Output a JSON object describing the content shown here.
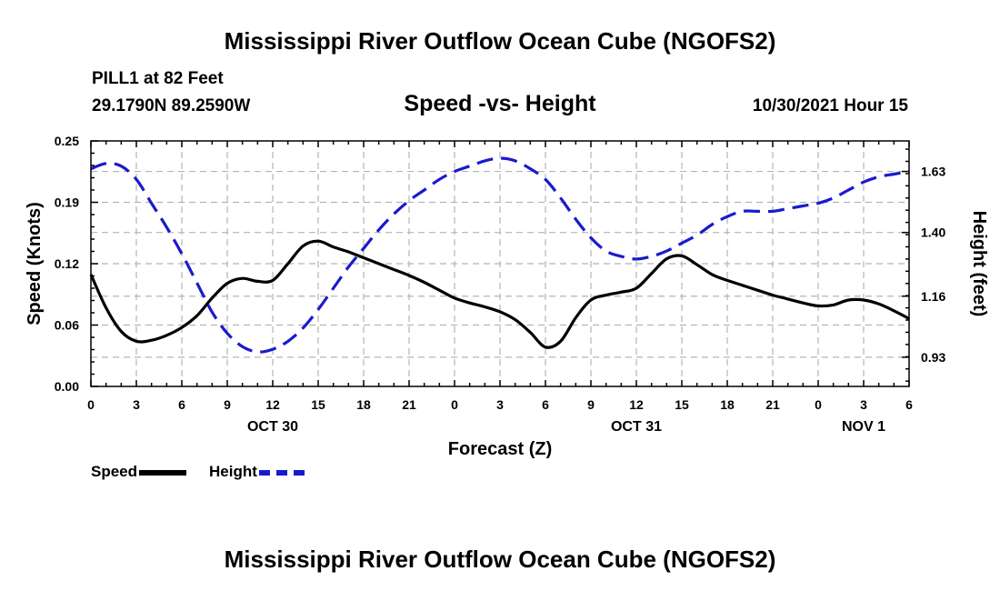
{
  "header": {
    "title": "Mississippi River Outflow Ocean Cube (NGOFS2)",
    "station": "PILL1 at 82 Feet",
    "coords": "29.1790N  89.2590W",
    "subtitle": "Speed -vs- Height",
    "timestamp": "10/30/2021 Hour 15"
  },
  "footer": {
    "title": "Mississippi River Outflow Ocean Cube (NGOFS2)"
  },
  "legend": {
    "speed_label": "Speed",
    "height_label": "Height"
  },
  "colors": {
    "speed": "#000000",
    "height": "#1a1acc",
    "grid": "#b4b4b4"
  },
  "chart_data": {
    "type": "line",
    "title": "Speed -vs- Height",
    "xlabel": "Forecast (Z)",
    "ylabel": "Speed (Knots)",
    "y2label": "Height (feet)",
    "x_unit": "hours from 10/30 00Z",
    "xlim": [
      0,
      54
    ],
    "ylim": [
      0,
      0.25
    ],
    "y2lim": [
      0.82,
      1.745
    ],
    "grid": true,
    "x_ticks": [
      {
        "x": 0,
        "label": "0"
      },
      {
        "x": 3,
        "label": "3"
      },
      {
        "x": 6,
        "label": "6"
      },
      {
        "x": 9,
        "label": "9"
      },
      {
        "x": 12,
        "label": "12"
      },
      {
        "x": 15,
        "label": "15"
      },
      {
        "x": 18,
        "label": "18"
      },
      {
        "x": 21,
        "label": "21"
      },
      {
        "x": 24,
        "label": "0"
      },
      {
        "x": 27,
        "label": "3"
      },
      {
        "x": 30,
        "label": "6"
      },
      {
        "x": 33,
        "label": "9"
      },
      {
        "x": 36,
        "label": "12"
      },
      {
        "x": 39,
        "label": "15"
      },
      {
        "x": 42,
        "label": "18"
      },
      {
        "x": 45,
        "label": "21"
      },
      {
        "x": 48,
        "label": "0"
      },
      {
        "x": 51,
        "label": "3"
      },
      {
        "x": 54,
        "label": "6"
      }
    ],
    "date_labels": [
      {
        "x": 12,
        "label": "OCT 30"
      },
      {
        "x": 36,
        "label": "OCT 31"
      },
      {
        "x": 51,
        "label": "NOV 1"
      }
    ],
    "y_ticks": [
      {
        "v": 0.0,
        "label": "0.00"
      },
      {
        "v": 0.0625,
        "label": "0.06"
      },
      {
        "v": 0.125,
        "label": "0.12"
      },
      {
        "v": 0.1875,
        "label": "0.19"
      },
      {
        "v": 0.25,
        "label": "0.25"
      }
    ],
    "y2_ticks": [
      {
        "v": 0.93,
        "label": "0.93"
      },
      {
        "v": 1.16,
        "label": "1.16"
      },
      {
        "v": 1.4,
        "label": "1.40"
      },
      {
        "v": 1.63,
        "label": "1.63"
      }
    ],
    "series": [
      {
        "name": "Speed",
        "axis": "left",
        "style": "solid",
        "x": [
          0,
          1,
          2,
          3,
          4,
          5,
          6,
          7,
          8,
          9,
          10,
          11,
          12,
          13,
          14,
          15,
          16,
          17,
          18,
          19,
          20,
          21,
          22,
          23,
          24,
          25,
          26,
          27,
          28,
          29,
          30,
          31,
          32,
          33,
          34,
          35,
          36,
          37,
          38,
          39,
          40,
          41,
          42,
          43,
          44,
          45,
          46,
          47,
          48,
          49,
          50,
          51,
          52,
          53,
          54
        ],
        "values": [
          0.114,
          0.08,
          0.056,
          0.046,
          0.047,
          0.052,
          0.06,
          0.072,
          0.09,
          0.105,
          0.11,
          0.107,
          0.108,
          0.125,
          0.143,
          0.148,
          0.142,
          0.137,
          0.131,
          0.125,
          0.119,
          0.113,
          0.106,
          0.098,
          0.09,
          0.085,
          0.081,
          0.076,
          0.068,
          0.055,
          0.04,
          0.046,
          0.07,
          0.088,
          0.093,
          0.096,
          0.1,
          0.115,
          0.13,
          0.133,
          0.124,
          0.114,
          0.108,
          0.103,
          0.098,
          0.093,
          0.089,
          0.085,
          0.082,
          0.083,
          0.088,
          0.088,
          0.084,
          0.077,
          0.069
        ]
      },
      {
        "name": "Height",
        "axis": "right",
        "style": "dashed",
        "x": [
          0,
          1,
          2,
          3,
          4,
          5,
          6,
          7,
          8,
          9,
          10,
          11,
          12,
          13,
          14,
          15,
          16,
          17,
          18,
          19,
          20,
          21,
          22,
          23,
          24,
          25,
          26,
          27,
          28,
          29,
          30,
          31,
          32,
          33,
          34,
          35,
          36,
          37,
          38,
          39,
          40,
          41,
          42,
          43,
          44,
          45,
          46,
          47,
          48,
          49,
          50,
          51,
          52,
          53,
          54
        ],
        "values": [
          1.64,
          1.66,
          1.65,
          1.6,
          1.51,
          1.42,
          1.32,
          1.21,
          1.1,
          1.02,
          0.97,
          0.95,
          0.96,
          0.99,
          1.04,
          1.11,
          1.19,
          1.27,
          1.34,
          1.41,
          1.47,
          1.52,
          1.56,
          1.6,
          1.63,
          1.65,
          1.67,
          1.68,
          1.67,
          1.64,
          1.6,
          1.53,
          1.45,
          1.38,
          1.33,
          1.31,
          1.3,
          1.31,
          1.33,
          1.36,
          1.39,
          1.43,
          1.46,
          1.48,
          1.48,
          1.48,
          1.49,
          1.5,
          1.51,
          1.53,
          1.56,
          1.59,
          1.61,
          1.62,
          1.63
        ]
      }
    ]
  }
}
